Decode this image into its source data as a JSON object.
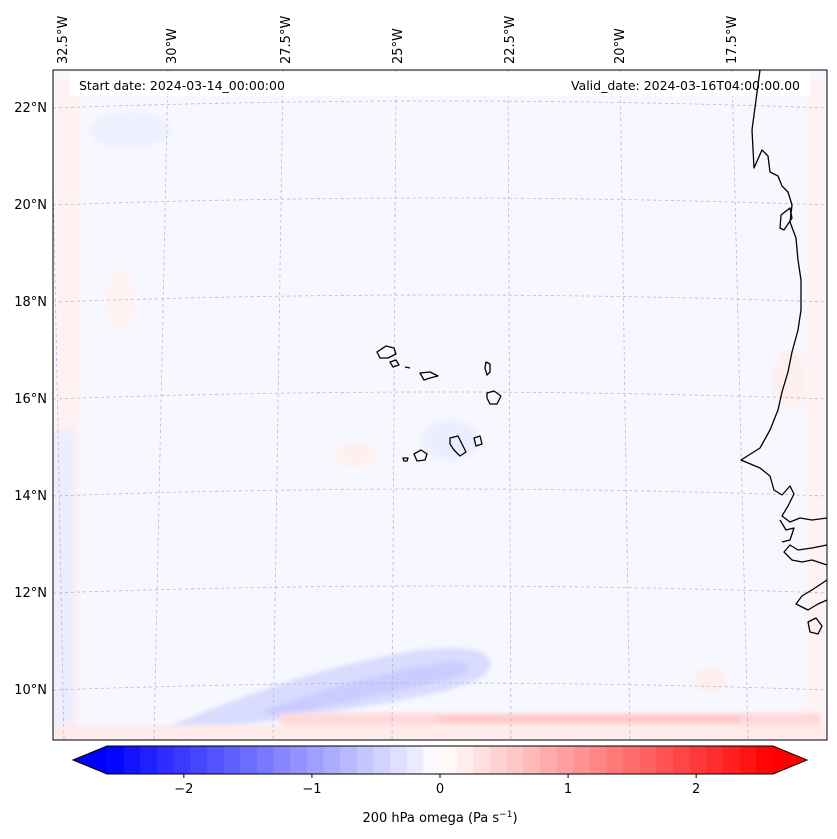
{
  "map": {
    "start_date_text": "Start date: 2024-03-14_00:00:00",
    "valid_date_text": "Valid_date: 2024-03-16T04:00:00.00",
    "lon_labels": [
      "32.5°W",
      "30°W",
      "27.5°W",
      "25°W",
      "22.5°W",
      "20°W",
      "17.5°W"
    ],
    "lat_labels": [
      "22°N",
      "20°N",
      "18°N",
      "16°N",
      "14°N",
      "12°N",
      "10°N"
    ],
    "colors": {
      "negative": "#0000ff",
      "zero": "#ffffff",
      "positive": "#ff0000",
      "coastline": "#000000",
      "gridline": "#b0b0b0"
    }
  },
  "colorbar": {
    "label_prefix": "200 hPa omega (Pa s",
    "label_exp": "−1",
    "label_suffix": ")",
    "ticks": [
      "−2",
      "−1",
      "0",
      "1",
      "2"
    ],
    "tick_values": [
      -2,
      -1,
      0,
      1,
      2
    ],
    "range": [
      -2.6,
      2.6
    ],
    "levels": 40
  }
}
